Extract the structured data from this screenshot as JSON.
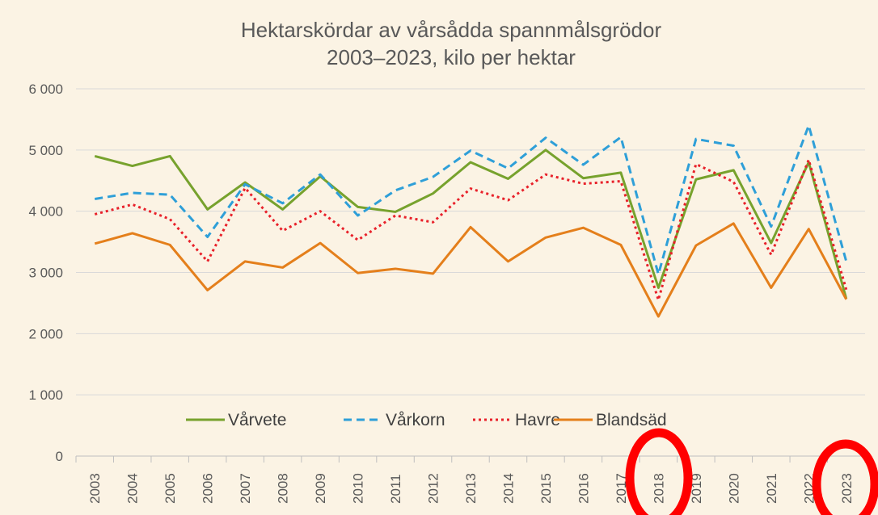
{
  "chart_data": {
    "type": "line",
    "title": "Hektarskördar av vårsådda spannmålsgrödor",
    "subtitle": "2003–2023, kilo per hektar",
    "categories": [
      "2003",
      "2004",
      "2005",
      "2006",
      "2007",
      "2008",
      "2009",
      "2010",
      "2011",
      "2012",
      "2013",
      "2014",
      "2015",
      "2016",
      "2017",
      "2018",
      "2019",
      "2020",
      "2021",
      "2022",
      "2023"
    ],
    "series": [
      {
        "name": "Vårvete",
        "color": "#77a22d",
        "style": "solid",
        "values": [
          4900,
          4740,
          4900,
          4030,
          4470,
          4030,
          4570,
          4070,
          3990,
          4290,
          4800,
          4530,
          5000,
          4540,
          4630,
          2750,
          4520,
          4670,
          3480,
          4800,
          2570
        ]
      },
      {
        "name": "Vårkorn",
        "color": "#2e9fd8",
        "style": "dashed",
        "values": [
          4200,
          4300,
          4270,
          3580,
          4440,
          4130,
          4600,
          3930,
          4340,
          4560,
          4990,
          4700,
          5200,
          4760,
          5210,
          2970,
          5180,
          5070,
          3750,
          5400,
          3180
        ]
      },
      {
        "name": "Havre",
        "color": "#e8212a",
        "style": "dotted",
        "values": [
          3950,
          4110,
          3870,
          3180,
          4380,
          3680,
          4000,
          3530,
          3930,
          3820,
          4370,
          4180,
          4600,
          4450,
          4490,
          2550,
          4770,
          4480,
          3290,
          4840,
          2720
        ]
      },
      {
        "name": "Blandsäd",
        "color": "#e47f1b",
        "style": "solid",
        "values": [
          3470,
          3640,
          3450,
          2710,
          3180,
          3080,
          3480,
          2990,
          3060,
          2980,
          3740,
          3180,
          3570,
          3730,
          3450,
          2280,
          3440,
          3800,
          2750,
          3710,
          2560
        ]
      }
    ],
    "ylim": [
      0,
      6000
    ],
    "yticks": [
      0,
      {
        "value": 1000,
        "label": "1 000"
      },
      {
        "value": 2000,
        "label": "2 000"
      },
      {
        "value": 3000,
        "label": "3 000"
      },
      {
        "value": 4000,
        "label": "4 000"
      },
      {
        "value": 5000,
        "label": "5 000"
      },
      {
        "value": 6000,
        "label": "6 000"
      }
    ],
    "grid": true,
    "legend": "bottom"
  }
}
